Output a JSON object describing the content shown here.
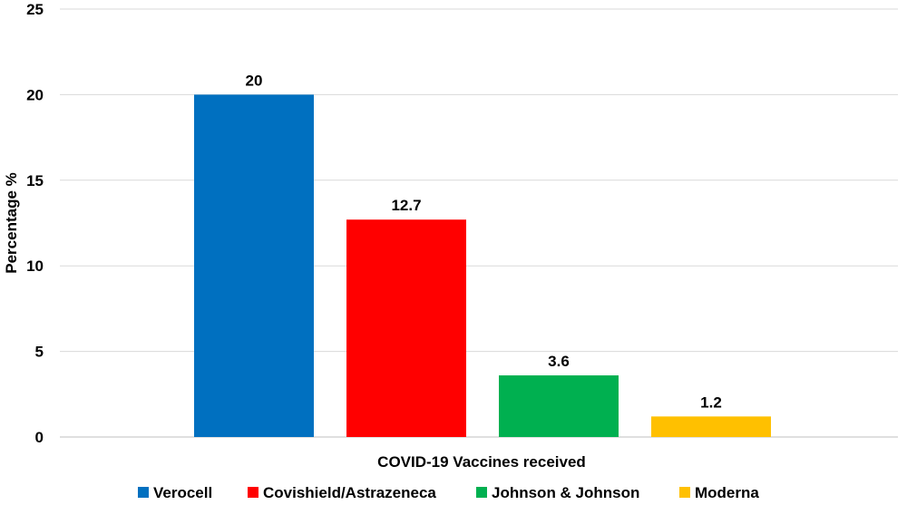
{
  "chart_data": {
    "type": "bar",
    "title": "",
    "xlabel": "COVID-19 Vaccines received",
    "ylabel": "Percentage %",
    "ylim": [
      0,
      25
    ],
    "yticks": [
      "0",
      "5",
      "10",
      "15",
      "20",
      "25"
    ],
    "grid": true,
    "legend_position": "bottom",
    "series": [
      {
        "name": "Verocell",
        "value": 20,
        "label": "20",
        "color": "#0070C0"
      },
      {
        "name": "Covishield/Astrazeneca",
        "value": 12.7,
        "label": "12.7",
        "color": "#FF0000"
      },
      {
        "name": "Johnson & Johnson",
        "value": 3.6,
        "label": "3.6",
        "color": "#00B050"
      },
      {
        "name": "Moderna",
        "value": 1.2,
        "label": "1.2",
        "color": "#FFC000"
      }
    ]
  }
}
